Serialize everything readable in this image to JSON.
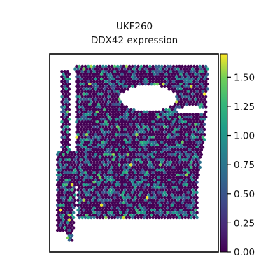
{
  "chart_data": {
    "type": "scatter",
    "subtype": "spatial-transcriptomics-hex-spots",
    "title": "UKF260",
    "subtitle": "DDX42 expression",
    "xlabel": "",
    "ylabel": "",
    "axis_ticks": false,
    "grid": false,
    "legend": "none",
    "colorbar": {
      "placement": "right",
      "colormap": "viridis",
      "range": [
        0.0,
        1.7
      ],
      "ticks": [
        0.0,
        0.25,
        0.5,
        0.75,
        1.0,
        1.25,
        1.5
      ],
      "tick_labels": [
        "0.00",
        "0.25",
        "0.50",
        "0.75",
        "1.00",
        "1.25",
        "1.50"
      ]
    },
    "value_distribution": {
      "background_value": 0.0,
      "fraction_expressing": 0.33,
      "typical_expressed_values": [
        0.5,
        0.7,
        0.9,
        1.1
      ],
      "max_value": 1.7
    },
    "colors": {
      "low": "#440154",
      "mid": "#21918c",
      "high": "#fde725"
    }
  }
}
